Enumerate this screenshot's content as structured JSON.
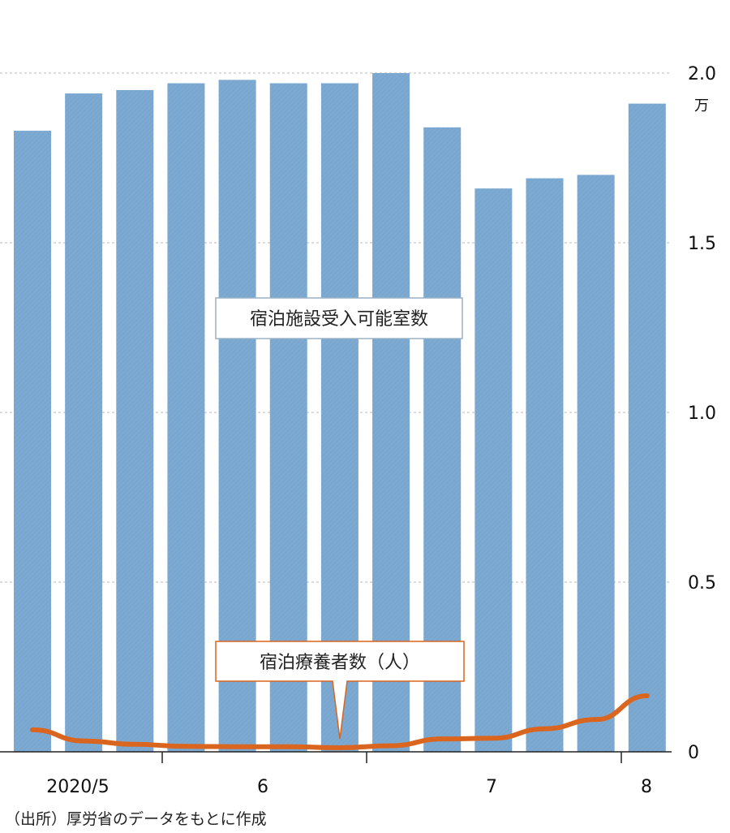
{
  "chart_data": {
    "type": "bar",
    "categories": [
      "2020/5",
      "",
      "",
      "",
      "6",
      "",
      "",
      "",
      "",
      "7",
      "",
      "",
      "8"
    ],
    "series": [
      {
        "name": "宿泊施設受入可能室数",
        "kind": "bar",
        "color": "#7aa7cf",
        "values": [
          1.83,
          1.94,
          1.95,
          1.97,
          1.98,
          1.97,
          1.97,
          2.0,
          1.84,
          1.66,
          1.69,
          1.7,
          1.91
        ]
      },
      {
        "name": "宿泊療養者数（人）",
        "kind": "line",
        "color": "#d9651f",
        "values": [
          0.065,
          0.032,
          0.022,
          0.016,
          0.015,
          0.015,
          0.012,
          0.018,
          0.038,
          0.04,
          0.068,
          0.095,
          0.165
        ]
      }
    ],
    "y_ticks": [
      "2.0",
      "1.5",
      "1.0",
      "0.5",
      "0"
    ],
    "ylim": [
      0,
      2.0
    ],
    "y_unit": "万",
    "x_tick_labels": [
      "2020/5",
      "6",
      "7",
      "8"
    ],
    "grid": true,
    "annotations": [
      "宿泊施設受入可能室数",
      "宿泊療養者数（人）"
    ]
  },
  "source": "（出所）厚労省のデータをもとに作成"
}
